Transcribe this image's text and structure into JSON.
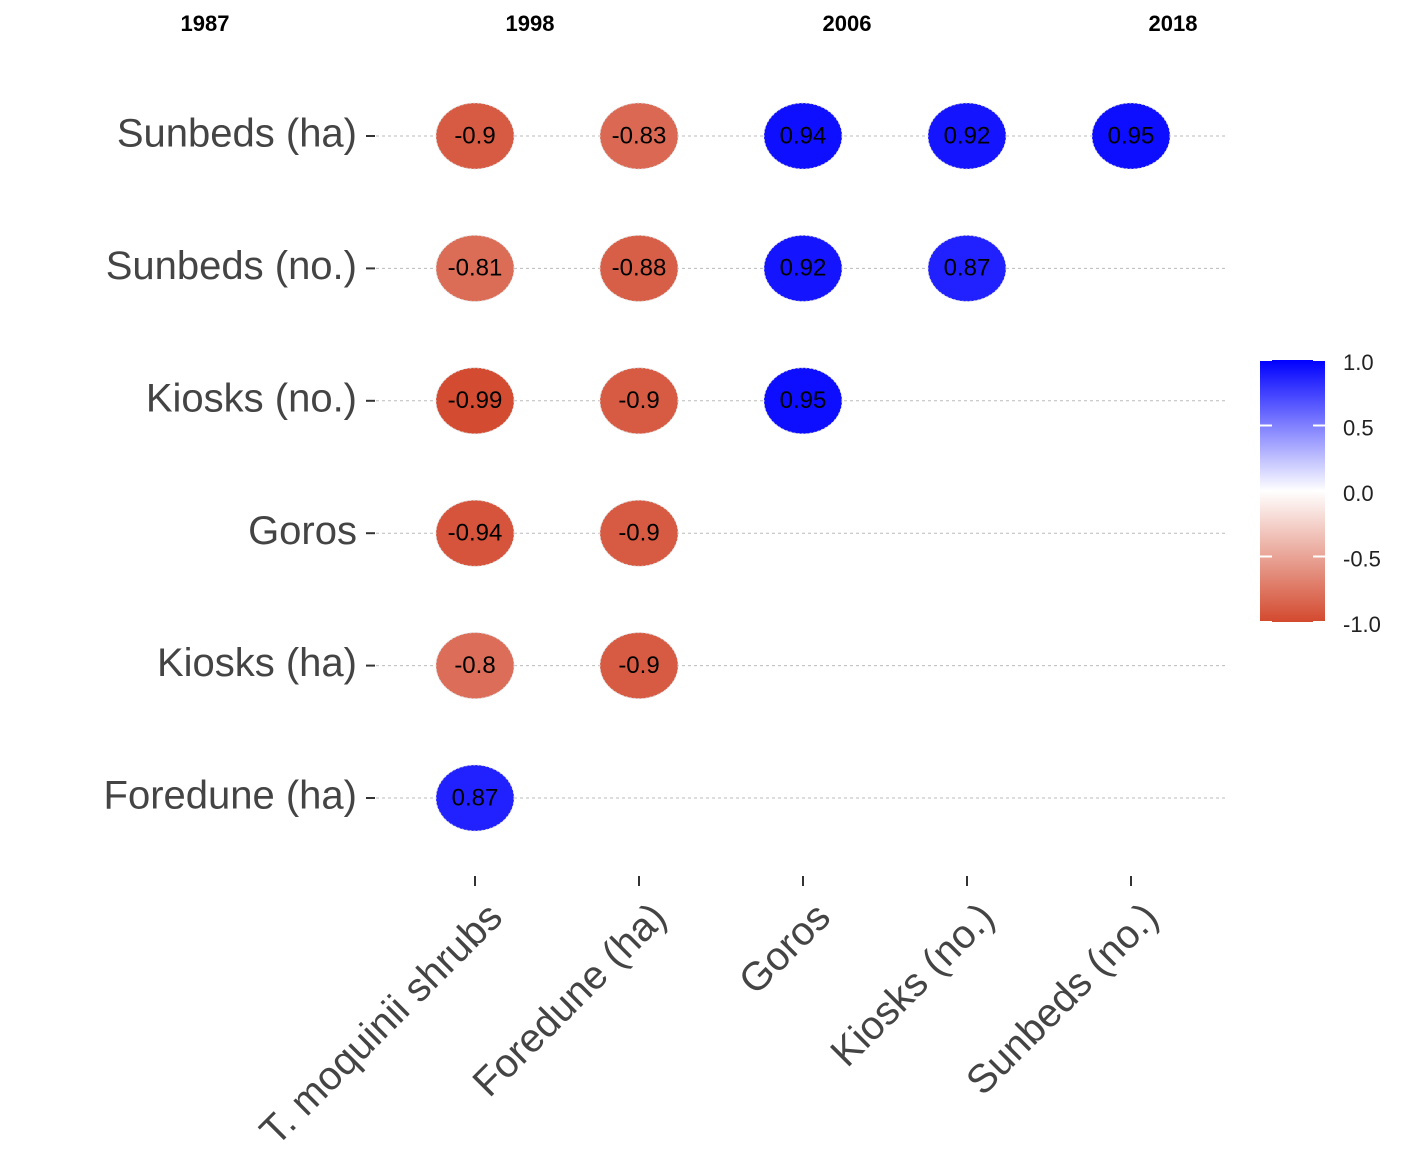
{
  "chart_data": {
    "type": "correlation",
    "column_headers": [
      "1987",
      "1998",
      "2006",
      "2018"
    ],
    "rows": [
      "Sunbeds (ha)",
      "Sunbeds (no.)",
      "Kiosks (no.)",
      "Goros",
      "Kiosks (ha)",
      "Foredune (ha)"
    ],
    "columns": [
      "T. moquinii shrubs",
      "Foredune (ha)",
      "Goros",
      "Kiosks (no.)",
      "Sunbeds (no.)"
    ],
    "values": [
      [
        -0.9,
        -0.83,
        0.94,
        0.92,
        0.95
      ],
      [
        -0.81,
        -0.88,
        0.92,
        0.87,
        null
      ],
      [
        -0.99,
        -0.9,
        0.95,
        null,
        null
      ],
      [
        -0.94,
        -0.9,
        null,
        null,
        null
      ],
      [
        -0.8,
        -0.9,
        null,
        null,
        null
      ],
      [
        0.87,
        null,
        null,
        null,
        null
      ]
    ],
    "color_low": "#d3492e",
    "color_mid": "#ffffff",
    "color_high": "#0000ff",
    "colorlim": [
      -1,
      1
    ],
    "colorticks": [
      {
        "value": 1,
        "label": "1.0"
      },
      0.5,
      {
        "value": 0,
        "label": "0.0"
      },
      -0.5,
      {
        "value": -1,
        "label": "-1.0"
      }
    ],
    "grid": true
  }
}
